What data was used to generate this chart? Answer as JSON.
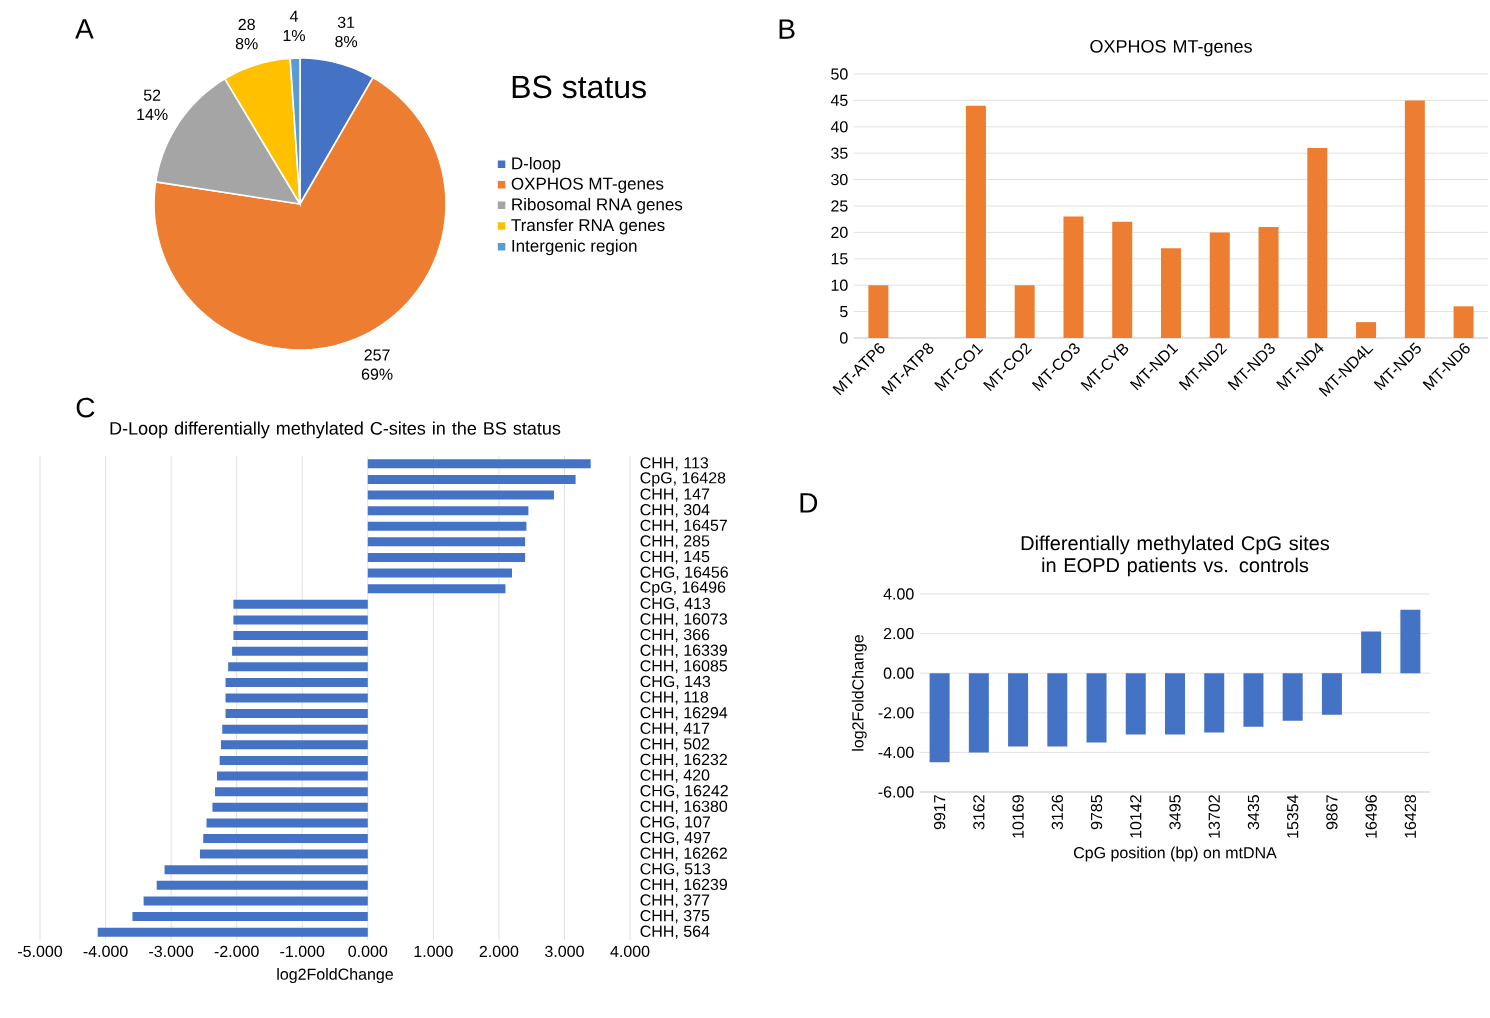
{
  "chart_data": [
    {
      "type": "pie",
      "title": "BS status",
      "annotations": [
        "A"
      ],
      "legend": "right",
      "categories": [
        "D-loop",
        "OXPHOS MT-genes",
        "Ribosomal RNA genes",
        "Transfer RNA genes",
        "Intergenic region"
      ],
      "values": [
        31,
        257,
        52,
        28,
        4
      ],
      "value_labels": [
        "31 8%",
        "257 69%",
        "52 14%",
        "28 8%",
        "4 1%"
      ],
      "colors": [
        "#4472c4",
        "#ed7d31",
        "#a5a5a5",
        "#ffc000",
        "#5b9bd5"
      ]
    },
    {
      "type": "bar",
      "title": "OXPHOS MT-genes",
      "annotations": [
        "B"
      ],
      "grid": "y",
      "categories": [
        "MT-ATP6",
        "MT-ATP8",
        "MT-CO1",
        "MT-CO2",
        "MT-CO3",
        "MT-CYB",
        "MT-ND1",
        "MT-ND2",
        "MT-ND3",
        "MT-ND4",
        "MT-ND4L",
        "MT-ND5",
        "MT-ND6"
      ],
      "values": [
        10,
        0,
        44,
        10,
        23,
        22,
        17,
        20,
        21,
        36,
        3,
        45,
        6
      ],
      "color": "#ed7d31",
      "ylim": [
        0,
        50
      ],
      "yticks": [
        0,
        5,
        10,
        15,
        20,
        25,
        30,
        35,
        40,
        45,
        50
      ]
    },
    {
      "type": "bar",
      "orientation": "horizontal",
      "title": "D-Loop differentially methylated C-sites in the BS status",
      "annotations": [
        "C"
      ],
      "grid": "x",
      "xlabel": "log2FoldChange",
      "categories": [
        "CHH, 113",
        "CpG, 16428",
        "CHH, 147",
        "CHH, 304",
        "CHH, 16457",
        "CHH, 285",
        "CHH, 145",
        "CHG, 16456",
        "CpG, 16496",
        "CHG, 413",
        "CHH, 16073",
        "CHH, 366",
        "CHH, 16339",
        "CHH, 16085",
        "CHG, 143",
        "CHH, 118",
        "CHH, 16294",
        "CHH, 417",
        "CHH, 502",
        "CHH, 16232",
        "CHH, 420",
        "CHG, 16242",
        "CHH, 16380",
        "CHG, 107",
        "CHG, 497",
        "CHH, 16262",
        "CHG, 513",
        "CHH, 16239",
        "CHH, 377",
        "CHH, 375",
        "CHH, 564"
      ],
      "values": [
        3.4,
        3.17,
        2.84,
        2.45,
        2.42,
        2.4,
        2.4,
        2.2,
        2.1,
        -2.05,
        -2.05,
        -2.05,
        -2.07,
        -2.13,
        -2.17,
        -2.17,
        -2.17,
        -2.22,
        -2.24,
        -2.26,
        -2.3,
        -2.33,
        -2.37,
        -2.46,
        -2.51,
        -2.56,
        -3.1,
        -3.22,
        -3.42,
        -3.59,
        -4.12
      ],
      "color": "#4472c4",
      "xlim": [
        -5,
        4
      ],
      "xticks": [
        {
          "value": -5,
          "label": "-5.000"
        },
        {
          "value": -4,
          "label": "-4.000"
        },
        {
          "value": -3,
          "label": "-3.000"
        },
        {
          "value": -2,
          "label": "-2.000"
        },
        {
          "value": -1,
          "label": "-1.000"
        },
        {
          "value": 0,
          "label": "0.000"
        },
        {
          "value": 1,
          "label": "1.000"
        },
        {
          "value": 2,
          "label": "2.000"
        },
        {
          "value": 3,
          "label": "3.000"
        },
        {
          "value": 4,
          "label": "4.000"
        }
      ]
    },
    {
      "type": "bar",
      "title": "Differentially methylated CpG sites in EOPD patients vs. controls",
      "annotations": [
        "D"
      ],
      "grid": "y",
      "xlabel": "CpG position (bp) on mtDNA",
      "ylabel": "log2FoldChange",
      "categories": [
        "9917",
        "3162",
        "10169",
        "3126",
        "9785",
        "10142",
        "3495",
        "13702",
        "3435",
        "15354",
        "9867",
        "16496",
        "16428"
      ],
      "values": [
        -4.5,
        -4.0,
        -3.7,
        -3.7,
        -3.5,
        -3.1,
        -3.1,
        -3.0,
        -2.7,
        -2.4,
        -2.1,
        2.1,
        3.2
      ],
      "color": "#4472c4",
      "ylim": [
        -6,
        4
      ],
      "yticks": [
        {
          "value": -6,
          "label": "-6.00"
        },
        {
          "value": -4,
          "label": "-4.00"
        },
        {
          "value": -2,
          "label": "-2.00"
        },
        {
          "value": 0,
          "label": "0.00"
        },
        {
          "value": 2,
          "label": "2.00"
        },
        {
          "value": 4,
          "label": "4.00"
        }
      ]
    }
  ]
}
